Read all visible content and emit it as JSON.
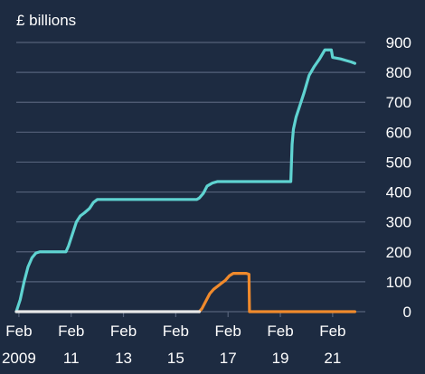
{
  "chart_data": {
    "type": "line",
    "unit_label": "£ billions",
    "title": "",
    "xlabel": "",
    "ylabel": "",
    "ylim": [
      0,
      900
    ],
    "xlim": [
      2009.0,
      2022.35
    ],
    "y_ticks": [
      0,
      100,
      200,
      300,
      400,
      500,
      600,
      700,
      800,
      900
    ],
    "x_ticks": [
      {
        "x": 2009.1,
        "month": "Feb",
        "year": "2009"
      },
      {
        "x": 2011.1,
        "month": "Feb",
        "year": "11"
      },
      {
        "x": 2013.1,
        "month": "Feb",
        "year": "13"
      },
      {
        "x": 2015.1,
        "month": "Feb",
        "year": "15"
      },
      {
        "x": 2017.1,
        "month": "Feb",
        "year": "17"
      },
      {
        "x": 2019.1,
        "month": "Feb",
        "year": "19"
      },
      {
        "x": 2021.1,
        "month": "Feb",
        "year": "21"
      }
    ],
    "grid": true,
    "series": [
      {
        "color": "#5fd3d1",
        "points": [
          [
            2009.0,
            0
          ],
          [
            2009.15,
            40
          ],
          [
            2009.3,
            100
          ],
          [
            2009.45,
            150
          ],
          [
            2009.6,
            180
          ],
          [
            2009.75,
            196
          ],
          [
            2009.9,
            200
          ],
          [
            2010.9,
            200
          ],
          [
            2011.0,
            220
          ],
          [
            2011.15,
            260
          ],
          [
            2011.3,
            300
          ],
          [
            2011.45,
            320
          ],
          [
            2011.6,
            330
          ],
          [
            2011.8,
            345
          ],
          [
            2011.95,
            365
          ],
          [
            2012.1,
            375
          ],
          [
            2015.9,
            375
          ],
          [
            2016.0,
            380
          ],
          [
            2016.15,
            395
          ],
          [
            2016.3,
            420
          ],
          [
            2016.5,
            430
          ],
          [
            2016.7,
            435
          ],
          [
            2019.5,
            435
          ],
          [
            2019.55,
            560
          ],
          [
            2019.6,
            610
          ],
          [
            2019.7,
            650
          ],
          [
            2019.85,
            690
          ],
          [
            2020.0,
            730
          ],
          [
            2020.2,
            790
          ],
          [
            2020.4,
            820
          ],
          [
            2020.6,
            845
          ],
          [
            2020.8,
            875
          ],
          [
            2020.9,
            875
          ],
          [
            2021.05,
            875
          ],
          [
            2021.1,
            850
          ],
          [
            2021.4,
            845
          ],
          [
            2021.6,
            840
          ],
          [
            2021.8,
            835
          ],
          [
            2021.95,
            830
          ]
        ]
      },
      {
        "color": "#f08a2c",
        "points": [
          [
            2016.0,
            0
          ],
          [
            2016.1,
            10
          ],
          [
            2016.25,
            35
          ],
          [
            2016.4,
            60
          ],
          [
            2016.55,
            75
          ],
          [
            2016.7,
            85
          ],
          [
            2016.85,
            95
          ],
          [
            2017.0,
            105
          ],
          [
            2017.15,
            120
          ],
          [
            2017.3,
            128
          ],
          [
            2017.8,
            128
          ],
          [
            2017.9,
            125
          ],
          [
            2017.92,
            0
          ],
          [
            2021.95,
            0
          ]
        ]
      },
      {
        "color": "#e8e8e8",
        "points": [
          [
            2009.0,
            0
          ],
          [
            2016.0,
            0
          ]
        ]
      }
    ]
  }
}
